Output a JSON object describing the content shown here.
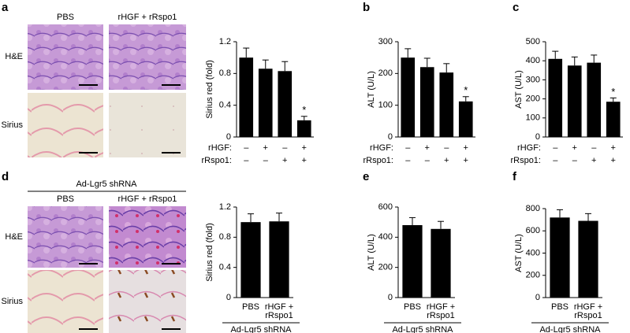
{
  "panel_letters": [
    "a",
    "b",
    "c",
    "d",
    "e",
    "f"
  ],
  "micrographs": [
    {
      "column_labels": [
        "PBS",
        "rHGF + rRspo1"
      ],
      "row_labels": [
        "H&E",
        "Sirius"
      ]
    },
    {
      "group_label": "Ad-Lgr5 shRNA",
      "column_labels": [
        "PBS",
        "rHGF + rRspo1"
      ],
      "row_labels": [
        "H&E",
        "Sirius"
      ]
    }
  ],
  "chart_data": [
    {
      "type": "bar",
      "ylabel": "Sirius red (fold)",
      "ylim": [
        0,
        1.2
      ],
      "yticks": [
        0,
        0.4,
        0.8,
        1.2
      ],
      "color": "#000000",
      "values": [
        1.0,
        0.86,
        0.83,
        0.21
      ],
      "errors": [
        0.12,
        0.11,
        0.12,
        0.05
      ],
      "annotations": [
        null,
        null,
        null,
        "*"
      ],
      "factors": [
        {
          "name": "rHGF:",
          "levels": [
            "–",
            "+",
            "–",
            "+"
          ]
        },
        {
          "name": "rRspo1:",
          "levels": [
            "–",
            "–",
            "+",
            "+"
          ]
        }
      ]
    },
    {
      "type": "bar",
      "ylabel": "ALT (U/L)",
      "ylim": [
        0,
        300
      ],
      "yticks": [
        0,
        100,
        200,
        300
      ],
      "color": "#000000",
      "values": [
        250,
        220,
        203,
        112
      ],
      "errors": [
        28,
        28,
        28,
        15
      ],
      "annotations": [
        null,
        null,
        null,
        "*"
      ],
      "factors": [
        {
          "name": "rHGF:",
          "levels": [
            "–",
            "+",
            "–",
            "+"
          ]
        },
        {
          "name": "rRspo1:",
          "levels": [
            "–",
            "–",
            "+",
            "+"
          ]
        }
      ]
    },
    {
      "type": "bar",
      "ylabel": "AST (U/L)",
      "ylim": [
        0,
        500
      ],
      "yticks": [
        0,
        100,
        200,
        300,
        400,
        500
      ],
      "color": "#000000",
      "values": [
        410,
        375,
        390,
        185
      ],
      "errors": [
        40,
        45,
        40,
        20
      ],
      "annotations": [
        null,
        null,
        null,
        "*"
      ],
      "factors": [
        {
          "name": "rHGF:",
          "levels": [
            "–",
            "+",
            "–",
            "+"
          ]
        },
        {
          "name": "rRspo1:",
          "levels": [
            "–",
            "–",
            "+",
            "+"
          ]
        }
      ]
    },
    {
      "type": "bar",
      "ylabel": "Sirius red (fold)",
      "ylim": [
        0,
        1.2
      ],
      "yticks": [
        0,
        0.4,
        0.8,
        1.2
      ],
      "color": "#000000",
      "values": [
        1.0,
        1.01
      ],
      "errors": [
        0.11,
        0.11
      ],
      "categories": [
        [
          "PBS"
        ],
        [
          "rHGF +",
          "rRspo1"
        ]
      ],
      "group_label": "Ad-Lgr5 shRNA"
    },
    {
      "type": "bar",
      "ylabel": "ALT (U/L)",
      "ylim": [
        0,
        600
      ],
      "yticks": [
        0,
        200,
        400,
        600
      ],
      "color": "#000000",
      "values": [
        480,
        455
      ],
      "errors": [
        50,
        50
      ],
      "categories": [
        [
          "PBS"
        ],
        [
          "rHGF +",
          "rRspo1"
        ]
      ],
      "group_label": "Ad-Lgr5 shRNA"
    },
    {
      "type": "bar",
      "ylabel": "AST (U/L)",
      "ylim": [
        0,
        800
      ],
      "yticks": [
        0,
        200,
        400,
        600,
        800
      ],
      "color": "#000000",
      "values": [
        720,
        690
      ],
      "errors": [
        70,
        65
      ],
      "categories": [
        [
          "PBS"
        ],
        [
          "rHGF +",
          "rRspo1"
        ]
      ],
      "group_label": "Ad-Lgr5 shRNA"
    }
  ]
}
